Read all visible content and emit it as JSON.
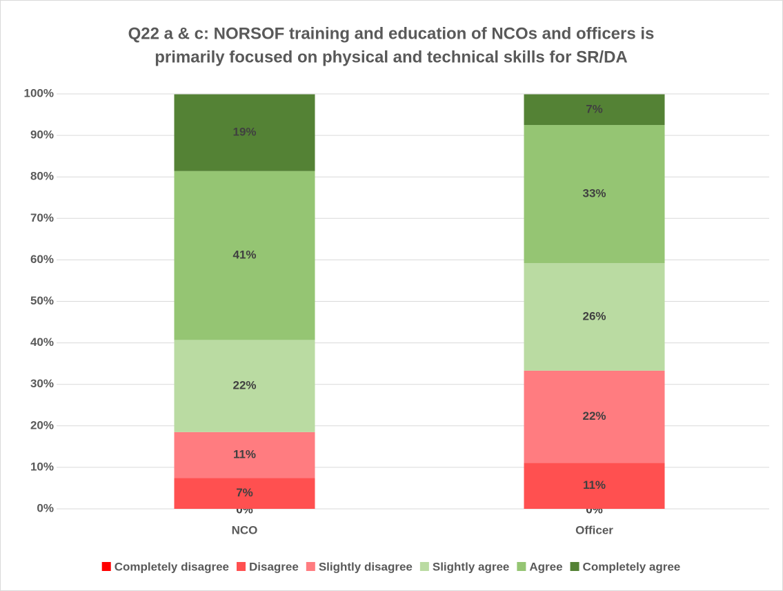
{
  "chart_data": {
    "type": "stacked_bar",
    "title": [
      "Q22 a & c: NORSOF training and education of NCOs and officers is",
      "primarily focused on physical and technical skills for SR/DA"
    ],
    "categories": [
      "NCO",
      "Officer"
    ],
    "series": [
      {
        "name": "Completely disagree",
        "color": "#ff0000",
        "values": [
          0,
          0
        ],
        "value_labels": [
          "0%",
          "0%"
        ]
      },
      {
        "name": "Disagree",
        "color": "#ff5050",
        "values": [
          7.4,
          11.1
        ],
        "value_labels": [
          "7%",
          "11%"
        ]
      },
      {
        "name": "Slightly disagree",
        "color": "#ff7c80",
        "values": [
          11.1,
          22.2
        ],
        "value_labels": [
          "11%",
          "22%"
        ]
      },
      {
        "name": "Slightly agree",
        "color": "#badba2",
        "values": [
          22.2,
          25.9
        ],
        "value_labels": [
          "22%",
          "26%"
        ]
      },
      {
        "name": "Agree",
        "color": "#95c573",
        "values": [
          40.7,
          33.3
        ],
        "value_labels": [
          "41%",
          "33%"
        ]
      },
      {
        "name": "Completely agree",
        "color": "#548235",
        "values": [
          18.5,
          7.4
        ],
        "value_labels": [
          "19%",
          "7%"
        ]
      }
    ],
    "ylim": [
      0,
      100
    ],
    "yticks": [
      {
        "value": 0,
        "label": "0%"
      },
      {
        "value": 10,
        "label": "10%"
      },
      {
        "value": 20,
        "label": "20%"
      },
      {
        "value": 30,
        "label": "30%"
      },
      {
        "value": 40,
        "label": "40%"
      },
      {
        "value": 50,
        "label": "50%"
      },
      {
        "value": 60,
        "label": "60%"
      },
      {
        "value": 70,
        "label": "70%"
      },
      {
        "value": 80,
        "label": "80%"
      },
      {
        "value": 90,
        "label": "90%"
      },
      {
        "value": 100,
        "label": "100%"
      }
    ],
    "grid": true,
    "legend": "bottom"
  }
}
